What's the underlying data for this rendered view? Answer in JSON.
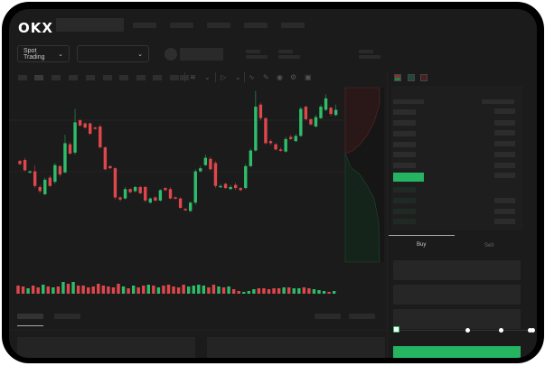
{
  "header": {
    "logo": "OKX",
    "nav_items": 5
  },
  "toolbar": {
    "market_selector": "Spot Trading",
    "pair_selector": ""
  },
  "trade": {
    "buy_label": "Buy",
    "sell_label": "Sell",
    "active_tab": "Buy",
    "slider_percent": 0
  },
  "colors": {
    "up": "#2ebd6b",
    "down": "#e0474c",
    "background": "#1b1b1b",
    "buy_button": "#25b562"
  },
  "icons": [
    "chevron-down-icon",
    "indicator-icon",
    "draw-line-icon",
    "camera-icon",
    "settings-icon",
    "fullscreen-icon",
    "orderbook-both-icon",
    "orderbook-buy-icon",
    "orderbook-sell-icon"
  ],
  "chart_data": {
    "type": "candlestick",
    "price_range": [
      60,
      190
    ],
    "candles": [
      [
        118,
        115,
        119,
        114
      ],
      [
        119,
        109,
        121,
        108
      ],
      [
        107,
        108,
        109,
        106
      ],
      [
        108,
        94,
        114,
        92
      ],
      [
        93,
        89,
        95,
        87
      ],
      [
        86,
        100,
        102,
        85
      ],
      [
        102,
        94,
        104,
        93
      ],
      [
        98,
        114,
        116,
        96
      ],
      [
        113,
        105,
        114,
        103
      ],
      [
        107,
        135,
        143,
        106
      ],
      [
        134,
        125,
        136,
        124
      ],
      [
        126,
        155,
        168,
        124
      ],
      [
        157,
        152,
        158,
        151
      ],
      [
        154,
        150,
        155,
        149
      ],
      [
        154,
        144,
        155,
        143
      ],
      [
        150,
        149,
        151,
        148
      ],
      [
        151,
        131,
        153,
        130
      ],
      [
        131,
        110,
        132,
        109
      ],
      [
        113,
        111,
        114,
        110
      ],
      [
        111,
        83,
        112,
        81
      ],
      [
        83,
        81,
        84,
        79
      ],
      [
        82,
        91,
        93,
        81
      ],
      [
        91,
        88,
        92,
        87
      ],
      [
        89,
        93,
        94,
        88
      ],
      [
        93,
        87,
        94,
        86
      ],
      [
        93,
        80,
        94,
        78
      ],
      [
        78,
        82,
        83,
        77
      ],
      [
        83,
        80,
        84,
        79
      ],
      [
        80,
        90,
        91,
        79
      ],
      [
        92,
        90,
        93,
        89
      ],
      [
        91,
        82,
        93,
        81
      ],
      [
        83,
        82,
        84,
        81
      ],
      [
        82,
        73,
        83,
        72
      ],
      [
        72,
        71,
        73,
        70
      ],
      [
        70,
        78,
        79,
        69
      ],
      [
        78,
        108,
        110,
        76
      ],
      [
        108,
        111,
        113,
        107
      ],
      [
        114,
        121,
        124,
        113
      ],
      [
        120,
        110,
        122,
        109
      ],
      [
        116,
        94,
        118,
        92
      ],
      [
        93,
        94,
        96,
        92
      ],
      [
        96,
        92,
        97,
        91
      ],
      [
        91,
        93,
        95,
        90
      ],
      [
        95,
        92,
        97,
        90
      ],
      [
        92,
        90,
        93,
        89
      ],
      [
        92,
        113,
        115,
        91
      ],
      [
        113,
        128,
        130,
        112
      ],
      [
        128,
        170,
        185,
        127
      ],
      [
        172,
        159,
        174,
        157
      ],
      [
        159,
        135,
        160,
        134
      ],
      [
        137,
        135,
        139,
        133
      ],
      [
        134,
        129,
        135,
        128
      ],
      [
        129,
        128,
        131,
        127
      ],
      [
        127,
        139,
        141,
        126
      ],
      [
        141,
        139,
        143,
        138
      ],
      [
        137,
        142,
        144,
        136
      ],
      [
        142,
        168,
        170,
        141
      ],
      [
        170,
        158,
        171,
        157
      ],
      [
        158,
        153,
        159,
        152
      ],
      [
        151,
        160,
        162,
        150
      ],
      [
        159,
        170,
        172,
        158
      ],
      [
        167,
        178,
        182,
        166
      ],
      [
        169,
        163,
        170,
        161
      ],
      [
        162,
        167,
        172,
        161
      ]
    ],
    "volume_range": [
      0,
      14
    ],
    "volumes": [
      9,
      8,
      6,
      9,
      7,
      10,
      8,
      7,
      8,
      13,
      11,
      13,
      9,
      9,
      7,
      8,
      11,
      9,
      8,
      7,
      11,
      8,
      6,
      9,
      7,
      9,
      10,
      9,
      7,
      9,
      10,
      8,
      7,
      10,
      8,
      9,
      10,
      9,
      7,
      10,
      8,
      7,
      8,
      5,
      3,
      2,
      3,
      5,
      6,
      6,
      5,
      6,
      6,
      7,
      7,
      6,
      6,
      7,
      6,
      5,
      4,
      3,
      2,
      3
    ]
  }
}
